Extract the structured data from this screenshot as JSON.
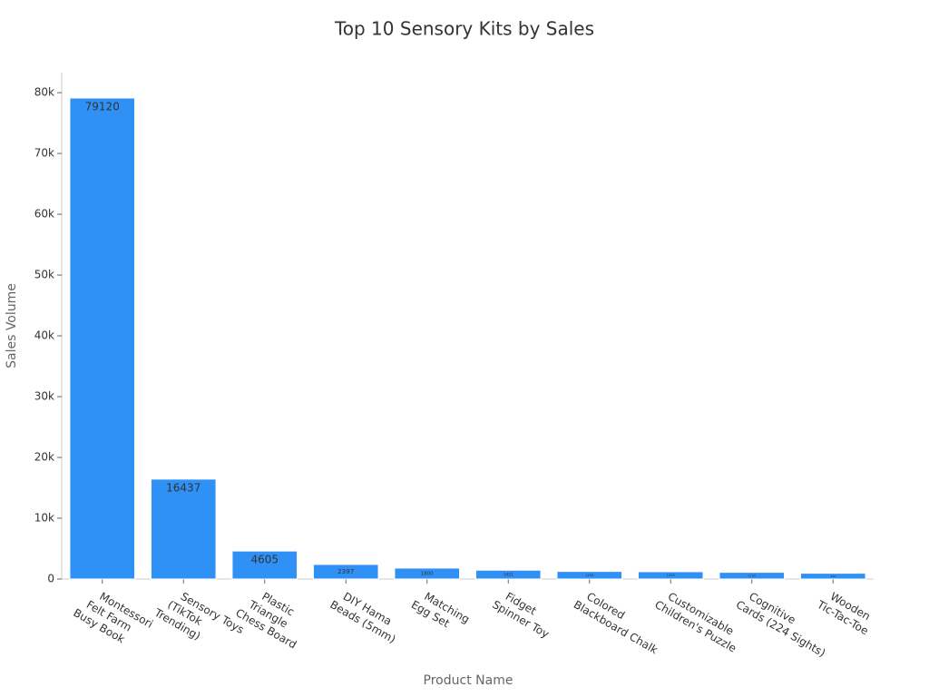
{
  "chart_data": {
    "type": "bar",
    "title": "Top 10 Sensory Kits by Sales",
    "x_label": "Product Name",
    "y_label": "Sales Volume",
    "categories": [
      "Montessori\nFelt Farm\nBusy Book",
      "Sensory Toys\n(TikTok\nTrending)",
      "Plastic\nTriangle\nChess Board",
      "DIY Hama\nBeads (5mm)",
      "Matching\nEgg Set",
      "Fidget\nSpinner Toy",
      "Colored\nBlackboard Chalk",
      "Customizable\nChildren's Puzzle",
      "Cognitive\nCards (224 Sights)",
      "Wooden\nTic-Tac-Toe"
    ],
    "values": [
      79120,
      16437,
      4605,
      2397,
      1800,
      1451,
      1250,
      1200,
      1100,
      950
    ],
    "color": "#2f91f5",
    "ylim": [
      0,
      83300
    ],
    "yticks": [
      0,
      {
        "value": 10000,
        "label": "10k"
      },
      {
        "value": 20000,
        "label": "20k"
      },
      {
        "value": 30000,
        "label": "30k"
      },
      {
        "value": 40000,
        "label": "40k"
      },
      {
        "value": 50000,
        "label": "50k"
      },
      {
        "value": 60000,
        "label": "60k"
      },
      {
        "value": 70000,
        "label": "70k"
      },
      {
        "value": 80000,
        "label": "80k"
      }
    ],
    "grid": false
  }
}
